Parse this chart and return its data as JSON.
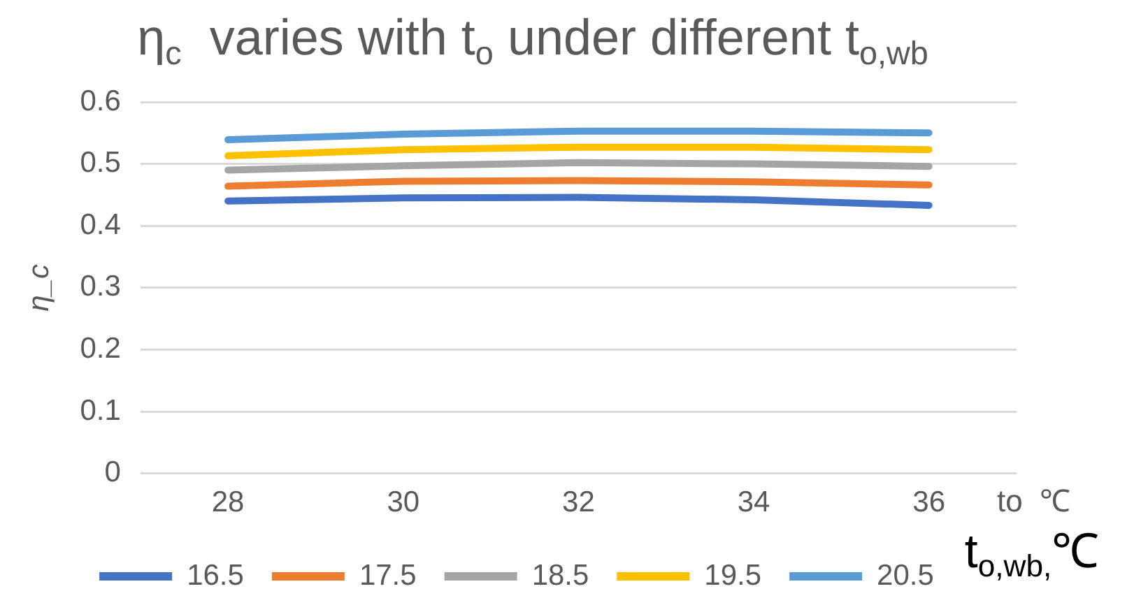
{
  "chart_data": {
    "type": "line",
    "title": "η$_{c}$  varies with t$_{o}$ under different t$_{o,wb}$",
    "xlabel": "to  ℃",
    "ylabel": "η_c",
    "legend_title": "t$_{o,wb,}$℃",
    "categories": [
      "28",
      "30",
      "32",
      "34",
      "36"
    ],
    "series": [
      {
        "name": "16.5",
        "color": "#4472c4",
        "values": [
          0.44,
          0.445,
          0.446,
          0.442,
          0.433
        ]
      },
      {
        "name": "17.5",
        "color": "#ed7d31",
        "values": [
          0.464,
          0.472,
          0.473,
          0.471,
          0.466
        ]
      },
      {
        "name": "18.5",
        "color": "#a5a5a5",
        "values": [
          0.49,
          0.497,
          0.502,
          0.5,
          0.496
        ]
      },
      {
        "name": "19.5",
        "color": "#ffc000",
        "values": [
          0.513,
          0.523,
          0.527,
          0.527,
          0.523
        ]
      },
      {
        "name": "20.5",
        "color": "#5b9bd5",
        "values": [
          0.539,
          0.548,
          0.553,
          0.553,
          0.55
        ]
      }
    ],
    "ylim": [
      0,
      0.6
    ],
    "yticks": [
      0,
      0.1,
      0.2,
      0.3,
      0.4,
      0.5,
      0.6
    ],
    "grid": "y",
    "legend": "bottom",
    "marker": "none",
    "line_style": "solid"
  }
}
